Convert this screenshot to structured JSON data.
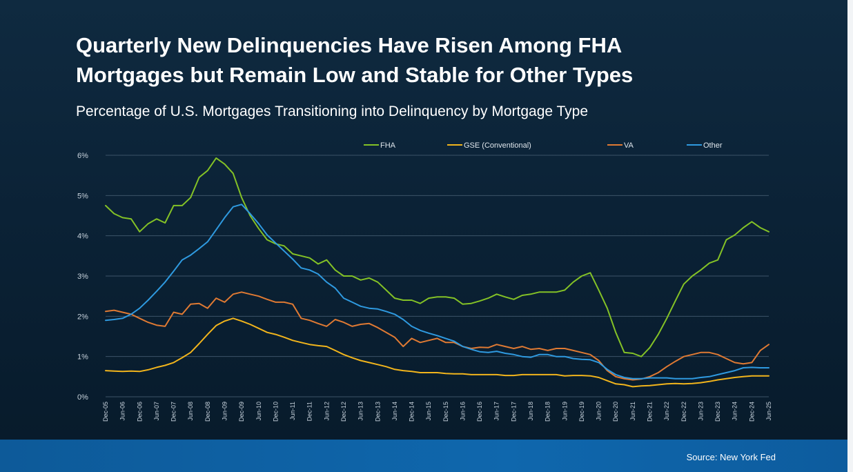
{
  "title_line1": "Quarterly New Delinquencies Have Risen Among FHA",
  "title_line2": "Mortgages but Remain Low and Stable for Other Types",
  "subtitle": "Percentage of U.S. Mortgages Transitioning into Delinquency by Mortgage Type",
  "source": "Source: New York Fed",
  "chart_data": {
    "type": "line",
    "x": [
      "Dec-05",
      "Mar-06",
      "Jun-06",
      "Sep-06",
      "Dec-06",
      "Mar-07",
      "Jun-07",
      "Sep-07",
      "Dec-07",
      "Mar-08",
      "Jun-08",
      "Sep-08",
      "Dec-08",
      "Mar-09",
      "Jun-09",
      "Sep-09",
      "Dec-09",
      "Mar-10",
      "Jun-10",
      "Sep-10",
      "Dec-10",
      "Mar-11",
      "Jun-11",
      "Sep-11",
      "Dec-11",
      "Mar-12",
      "Jun-12",
      "Sep-12",
      "Dec-12",
      "Mar-13",
      "Jun-13",
      "Sep-13",
      "Dec-13",
      "Mar-14",
      "Jun-14",
      "Sep-14",
      "Dec-14",
      "Mar-15",
      "Jun-15",
      "Sep-15",
      "Dec-15",
      "Mar-16",
      "Jun-16",
      "Sep-16",
      "Dec-16",
      "Mar-17",
      "Jun-17",
      "Sep-17",
      "Dec-17",
      "Mar-18",
      "Jun-18",
      "Sep-18",
      "Dec-18",
      "Mar-19",
      "Jun-19",
      "Sep-19",
      "Dec-19",
      "Mar-20",
      "Jun-20",
      "Sep-20",
      "Dec-20",
      "Mar-21",
      "Jun-21",
      "Sep-21",
      "Dec-21",
      "Mar-22",
      "Jun-22",
      "Sep-22",
      "Dec-22",
      "Mar-23",
      "Jun-23",
      "Sep-23",
      "Dec-23",
      "Mar-24",
      "Jun-24",
      "Sep-24",
      "Dec-24",
      "Mar-25",
      "Jun-25"
    ],
    "tick_labels": [
      "Dec-05",
      "Jun-06",
      "Dec-06",
      "Jun-07",
      "Dec-07",
      "Jun-08",
      "Dec-08",
      "Jun-09",
      "Dec-09",
      "Jun-10",
      "Dec-10",
      "Jun-11",
      "Dec-11",
      "Jun-12",
      "Dec-12",
      "Jun-13",
      "Dec-13",
      "Jun-14",
      "Dec-14",
      "Jun-15",
      "Dec-15",
      "Jun-16",
      "Dec-16",
      "Jun-17",
      "Dec-17",
      "Jun-18",
      "Dec-18",
      "Jun-19",
      "Dec-19",
      "Jun-20",
      "Dec-20",
      "Jun-21",
      "Dec-21",
      "Jun-22",
      "Dec-22",
      "Jun-23",
      "Dec-23",
      "Jun-24",
      "Dec-24",
      "Jun-25"
    ],
    "y_ticks": [
      0,
      1,
      2,
      3,
      4,
      5,
      6
    ],
    "y_tick_labels": [
      "0%",
      "1%",
      "2%",
      "3%",
      "4%",
      "5%",
      "6%"
    ],
    "ylim": [
      0,
      6
    ],
    "grid": true,
    "legend_position": "top",
    "series": [
      {
        "name": "FHA",
        "color": "#84c226",
        "values": [
          4.75,
          4.55,
          4.45,
          4.42,
          4.1,
          4.3,
          4.42,
          4.32,
          4.75,
          4.75,
          4.95,
          5.45,
          5.62,
          5.93,
          5.78,
          5.55,
          4.95,
          4.5,
          4.18,
          3.9,
          3.8,
          3.75,
          3.55,
          3.5,
          3.45,
          3.3,
          3.4,
          3.15,
          3.0,
          3.0,
          2.9,
          2.95,
          2.85,
          2.65,
          2.45,
          2.4,
          2.4,
          2.32,
          2.45,
          2.48,
          2.48,
          2.45,
          2.3,
          2.32,
          2.38,
          2.45,
          2.55,
          2.48,
          2.42,
          2.52,
          2.55,
          2.6,
          2.6,
          2.6,
          2.65,
          2.85,
          3.0,
          3.08,
          2.65,
          2.2,
          1.6,
          1.1,
          1.08,
          1.0,
          1.22,
          1.55,
          1.95,
          2.38,
          2.8,
          3.0,
          3.15,
          3.32,
          3.4,
          3.9,
          4.02,
          4.2,
          4.35,
          4.2,
          4.1
        ]
      },
      {
        "name": "GSE (Conventional)",
        "color": "#f2b51c",
        "values": [
          0.65,
          0.64,
          0.63,
          0.64,
          0.63,
          0.67,
          0.73,
          0.78,
          0.85,
          0.97,
          1.1,
          1.32,
          1.55,
          1.77,
          1.88,
          1.95,
          1.88,
          1.8,
          1.7,
          1.6,
          1.55,
          1.48,
          1.4,
          1.35,
          1.3,
          1.27,
          1.25,
          1.15,
          1.05,
          0.97,
          0.9,
          0.85,
          0.8,
          0.75,
          0.68,
          0.65,
          0.63,
          0.6,
          0.6,
          0.6,
          0.58,
          0.57,
          0.57,
          0.55,
          0.55,
          0.55,
          0.55,
          0.53,
          0.53,
          0.55,
          0.55,
          0.55,
          0.55,
          0.55,
          0.52,
          0.53,
          0.53,
          0.52,
          0.48,
          0.4,
          0.32,
          0.3,
          0.25,
          0.27,
          0.28,
          0.3,
          0.32,
          0.33,
          0.32,
          0.33,
          0.35,
          0.38,
          0.42,
          0.45,
          0.48,
          0.5,
          0.52,
          0.52,
          0.52
        ]
      },
      {
        "name": "VA",
        "color": "#e07a33",
        "values": [
          2.12,
          2.15,
          2.1,
          2.05,
          1.95,
          1.85,
          1.78,
          1.75,
          2.1,
          2.05,
          2.3,
          2.32,
          2.2,
          2.45,
          2.35,
          2.55,
          2.6,
          2.55,
          2.5,
          2.42,
          2.35,
          2.35,
          2.3,
          1.95,
          1.9,
          1.82,
          1.75,
          1.92,
          1.85,
          1.75,
          1.8,
          1.82,
          1.72,
          1.6,
          1.48,
          1.25,
          1.45,
          1.35,
          1.4,
          1.45,
          1.35,
          1.35,
          1.25,
          1.2,
          1.23,
          1.22,
          1.3,
          1.25,
          1.2,
          1.25,
          1.18,
          1.2,
          1.15,
          1.2,
          1.2,
          1.15,
          1.1,
          1.05,
          0.9,
          0.65,
          0.5,
          0.45,
          0.42,
          0.44,
          0.5,
          0.6,
          0.75,
          0.88,
          1.0,
          1.05,
          1.1,
          1.1,
          1.05,
          0.95,
          0.85,
          0.82,
          0.85,
          1.15,
          1.3
        ]
      },
      {
        "name": "Other",
        "color": "#2f9ae0",
        "values": [
          1.9,
          1.92,
          1.95,
          2.05,
          2.2,
          2.4,
          2.62,
          2.85,
          3.12,
          3.4,
          3.52,
          3.68,
          3.85,
          4.15,
          4.45,
          4.72,
          4.78,
          4.55,
          4.3,
          4.02,
          3.82,
          3.62,
          3.42,
          3.2,
          3.15,
          3.05,
          2.85,
          2.7,
          2.45,
          2.35,
          2.25,
          2.2,
          2.18,
          2.12,
          2.05,
          1.92,
          1.75,
          1.65,
          1.58,
          1.52,
          1.45,
          1.38,
          1.25,
          1.18,
          1.12,
          1.1,
          1.13,
          1.08,
          1.05,
          1.0,
          0.98,
          1.05,
          1.05,
          1.0,
          1.0,
          0.95,
          0.93,
          0.92,
          0.85,
          0.68,
          0.55,
          0.48,
          0.45,
          0.45,
          0.47,
          0.47,
          0.47,
          0.45,
          0.45,
          0.45,
          0.48,
          0.5,
          0.55,
          0.6,
          0.65,
          0.72,
          0.73,
          0.72,
          0.72
        ]
      }
    ]
  }
}
